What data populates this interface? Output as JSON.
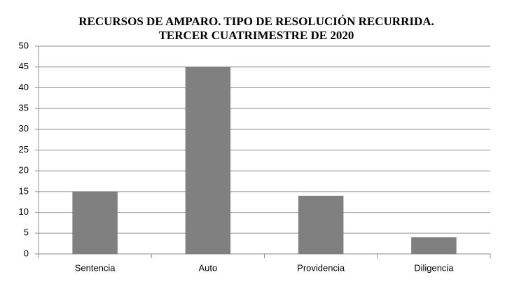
{
  "chart_data": {
    "type": "bar",
    "title": [
      "RECURSOS DE AMPARO. TIPO DE RESOLUCIÓN RECURRIDA.",
      "TERCER CUATRIMESTRE DE 2020"
    ],
    "categories": [
      "Sentencia",
      "Auto",
      "Providencia",
      "Diligencia"
    ],
    "values": [
      15,
      45,
      14,
      4
    ],
    "color": "#808080",
    "ylim": [
      0,
      50
    ],
    "yticks": [
      0,
      5,
      10,
      15,
      20,
      25,
      30,
      35,
      40,
      45,
      50
    ],
    "grid": true
  }
}
